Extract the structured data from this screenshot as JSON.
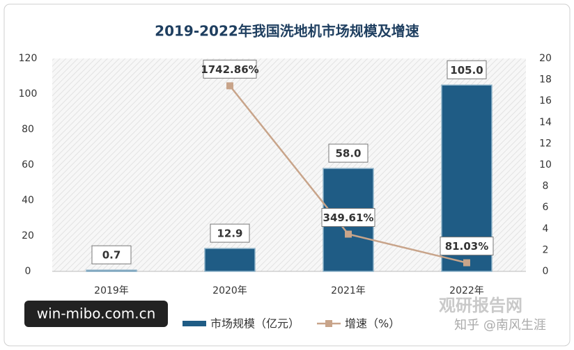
{
  "chart_data": {
    "type": "bar",
    "title": "2019-2022年我国洗地机市场规模及增速",
    "categories": [
      "2019年",
      "2020年",
      "2021年",
      "2022年"
    ],
    "series": [
      {
        "name": "市场规模（亿元）",
        "type": "bar",
        "color": "#1f5c85",
        "values": [
          0.7,
          12.9,
          58.0,
          105.0
        ],
        "value_labels": [
          "0.7",
          "12.9",
          "58.0",
          "105.0"
        ]
      },
      {
        "name": "增速（%）",
        "type": "line",
        "axis": "y2",
        "color": "#c8a48a",
        "values": [
          null,
          17.4286,
          3.4961,
          0.8103
        ],
        "value_labels": [
          null,
          "1742.86%",
          "349.61%",
          "81.03%"
        ]
      }
    ],
    "ylim": [
      0,
      120
    ],
    "yticks": [
      0,
      20,
      40,
      60,
      80,
      100,
      120
    ],
    "y2lim": [
      0,
      20
    ],
    "y2ticks": [
      0,
      2,
      4,
      6,
      8,
      10,
      12,
      14,
      16,
      18,
      20
    ],
    "grid": false,
    "legend": "bottom",
    "annotations": [
      "win-mibo.com.cn",
      "观研报告网",
      "知乎 @南风生涯"
    ]
  }
}
